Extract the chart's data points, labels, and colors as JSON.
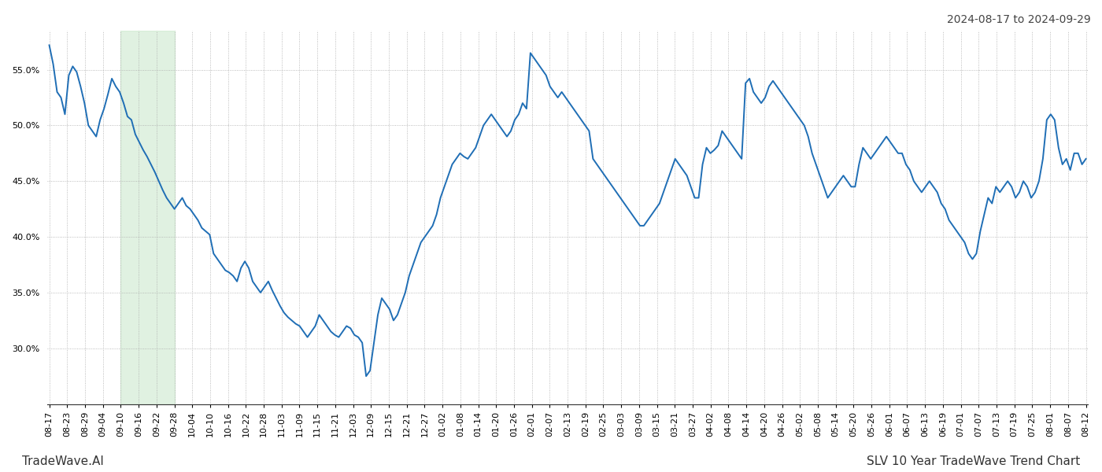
{
  "title_top_right": "2024-08-17 to 2024-09-29",
  "footer_left": "TradeWave.AI",
  "footer_right": "SLV 10 Year TradeWave Trend Chart",
  "ylim": [
    25.0,
    58.5
  ],
  "yticks": [
    30.0,
    35.0,
    40.0,
    45.0,
    50.0,
    55.0
  ],
  "line_color": "#1f6eb5",
  "line_width": 1.4,
  "shade_color": "#c8e6c9",
  "shade_alpha": 0.55,
  "background_color": "#ffffff",
  "x_labels": [
    "08-17",
    "08-23",
    "08-29",
    "09-04",
    "09-10",
    "09-16",
    "09-22",
    "09-28",
    "10-04",
    "10-10",
    "10-16",
    "10-22",
    "10-28",
    "11-03",
    "11-09",
    "11-15",
    "11-21",
    "12-03",
    "12-09",
    "12-15",
    "12-21",
    "12-27",
    "01-02",
    "01-08",
    "01-14",
    "01-20",
    "01-26",
    "02-01",
    "02-07",
    "02-13",
    "02-19",
    "02-25",
    "03-03",
    "03-09",
    "03-15",
    "03-21",
    "03-27",
    "04-02",
    "04-08",
    "04-14",
    "04-20",
    "04-26",
    "05-02",
    "05-08",
    "05-14",
    "05-20",
    "05-26",
    "06-01",
    "06-07",
    "06-13",
    "06-19",
    "07-01",
    "07-07",
    "07-13",
    "07-19",
    "07-25",
    "08-01",
    "08-07",
    "08-12"
  ],
  "shade_start_label": "09-10",
  "shade_end_label": "09-28",
  "tick_fontsize": 8.0,
  "y_values": [
    57.2,
    55.5,
    53.0,
    52.5,
    51.0,
    54.5,
    55.3,
    54.8,
    53.5,
    52.0,
    50.0,
    49.5,
    49.0,
    50.5,
    51.5,
    52.8,
    54.2,
    53.5,
    53.0,
    52.0,
    50.8,
    50.5,
    49.2,
    48.5,
    47.8,
    47.2,
    46.5,
    45.8,
    45.0,
    44.2,
    43.5,
    43.0,
    42.5,
    43.0,
    43.5,
    42.8,
    42.5,
    42.0,
    41.5,
    40.8,
    40.5,
    40.2,
    38.5,
    38.0,
    37.5,
    37.0,
    36.8,
    36.5,
    36.0,
    37.2,
    37.8,
    37.2,
    36.0,
    35.5,
    35.0,
    35.5,
    36.0,
    35.2,
    34.5,
    33.8,
    33.2,
    32.8,
    32.5,
    32.2,
    32.0,
    31.5,
    31.0,
    31.5,
    32.0,
    33.0,
    32.5,
    32.0,
    31.5,
    31.2,
    31.0,
    31.5,
    32.0,
    31.8,
    31.2,
    31.0,
    30.5,
    27.5,
    28.0,
    30.5,
    33.0,
    34.5,
    34.0,
    33.5,
    32.5,
    33.0,
    34.0,
    35.0,
    36.5,
    37.5,
    38.5,
    39.5,
    40.0,
    40.5,
    41.0,
    42.0,
    43.5,
    44.5,
    45.5,
    46.5,
    47.0,
    47.5,
    47.2,
    47.0,
    47.5,
    48.0,
    49.0,
    50.0,
    50.5,
    51.0,
    50.5,
    50.0,
    49.5,
    49.0,
    49.5,
    50.5,
    51.0,
    52.0,
    51.5,
    56.5,
    56.0,
    55.5,
    55.0,
    54.5,
    53.5,
    53.0,
    52.5,
    53.0,
    52.5,
    52.0,
    51.5,
    51.0,
    50.5,
    50.0,
    49.5,
    47.0,
    46.5,
    46.0,
    45.5,
    45.0,
    44.5,
    44.0,
    43.5,
    43.0,
    42.5,
    42.0,
    41.5,
    41.0,
    41.0,
    41.5,
    42.0,
    42.5,
    43.0,
    44.0,
    45.0,
    46.0,
    47.0,
    46.5,
    46.0,
    45.5,
    44.5,
    43.5,
    43.5,
    46.5,
    48.0,
    47.5,
    47.8,
    48.2,
    49.5,
    49.0,
    48.5,
    48.0,
    47.5,
    47.0,
    53.8,
    54.2,
    53.0,
    52.5,
    52.0,
    52.5,
    53.5,
    54.0,
    53.5,
    53.0,
    52.5,
    52.0,
    51.5,
    51.0,
    50.5,
    50.0,
    49.0,
    47.5,
    46.5,
    45.5,
    44.5,
    43.5,
    44.0,
    44.5,
    45.0,
    45.5,
    45.0,
    44.5,
    44.5,
    46.5,
    48.0,
    47.5,
    47.0,
    47.5,
    48.0,
    48.5,
    49.0,
    48.5,
    48.0,
    47.5,
    47.5,
    46.5,
    46.0,
    45.0,
    44.5,
    44.0,
    44.5,
    45.0,
    44.5,
    44.0,
    43.0,
    42.5,
    41.5,
    41.0,
    40.5,
    40.0,
    39.5,
    38.5,
    38.0,
    38.5,
    40.5,
    42.0,
    43.5,
    43.0,
    44.5,
    44.0,
    44.5,
    45.0,
    44.5,
    43.5,
    44.0,
    45.0,
    44.5,
    43.5,
    44.0,
    45.0,
    47.0,
    50.5,
    51.0,
    50.5,
    48.0,
    46.5,
    47.0,
    46.0,
    47.5,
    47.5,
    46.5,
    47.0
  ]
}
